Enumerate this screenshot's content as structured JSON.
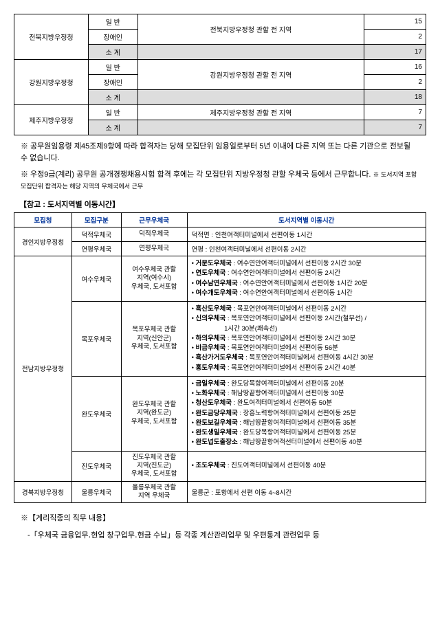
{
  "table1": {
    "rows": [
      {
        "agency": "전북지방우정청",
        "cat": "일 반",
        "region": "전북지방우정청 관할 전 지역",
        "count": "15"
      },
      {
        "cat": "장애인",
        "count": "2"
      },
      {
        "cat": "소 계",
        "count": "17",
        "shaded": true
      },
      {
        "agency": "강원지방우정청",
        "cat": "일 반",
        "region": "강원지방우정청 관할 전 지역",
        "count": "16"
      },
      {
        "cat": "장애인",
        "count": "2"
      },
      {
        "cat": "소 계",
        "count": "18",
        "shaded": true
      },
      {
        "agency": "제주지방우정청",
        "cat": "일 반",
        "region": "제주지방우정청 관할 전 지역",
        "count": "7"
      },
      {
        "cat": "소 계",
        "count": "7",
        "shaded": true
      }
    ]
  },
  "note1": "※ 공무원임용령 제45조제9항에 따라 합격자는 당해 모집단위 임용일로부터 5년 이내에 다른 지역 또는 다른 기관으로 전보될 수 없습니다.",
  "note2a": "※ 우정9급(계리) 공무원 공개경쟁채용시험 합격 후에는 각 모집단위 지방우정청 관할 우체국 등에서 근무합니다.",
  "note2b": "※ 도서지역 포함 모집단위 합격자는 해당 지역의 우체국에서 근무",
  "ref_title": "【참고 : 도서지역별 이동시간】",
  "table2": {
    "headers": [
      "모집청",
      "모집구분",
      "근무우체국",
      "도서지역별 이동시간"
    ],
    "rows": [
      {
        "agency": "경인지방우정청",
        "div": "덕적우체국",
        "office": "덕적우체국",
        "time": "덕적면 : 인천여객터미널에서 선편이동 1시간"
      },
      {
        "div": "연평우체국",
        "office": "연평우체국",
        "time": "연평 : 인천여객터미널에서 선편이동 2시간"
      },
      {
        "agency": "전남지방우정청",
        "div": "여수우체국",
        "office": "여수우체국 관할\n지역(여수시)\n우체국, 도서포함",
        "bullets": [
          "<b>거문도우체국</b> : 여수연안여객터미널에서 선편이동 2시간 30분",
          "<b>연도우체국</b> : 여수연안여객터미널에서 선편이동 2시간",
          "<b>여수남연우체국</b> : 여수연안여객터미널에서 선편이동 1시간 20분",
          "<b>여수개도우체국</b> : 여수연안여객터미널에서 선편이동 1시간"
        ]
      },
      {
        "div": "목포우체국",
        "office": "목포우체국 관할\n지역(신안군)\n우체국, 도서포함",
        "bullets": [
          "<b>흑산도우체국</b> : 목포연안여객터미널에서 선편이동 2시간",
          "<b>신의우체국</b> : 목포연안여객터미널에서 선편이동 2시간(철부선) /<br>　　　　　1시간 30분(쾌속선)",
          "<b>하의우체국</b> : 목포연안여객터미널에서 선편이동 2시간 30분",
          "<b>비금우체국</b> : 목포연안여객터미널에서 선편이동 56분",
          "<b>흑산가거도우체국</b> : 목포연안여객터미널에서 선편이동 4시간 30분",
          "<b>홍도우체국</b> : 목포연안여객터미널에서 선편이동 2시간 40분"
        ]
      },
      {
        "div": "완도우체국",
        "office": "완도우체국 관할\n지역(완도군)\n우체국, 도서포함",
        "bullets": [
          "<b>금일우체국</b> : 완도당목항여객터미널에서 선편이동 20분",
          "<b>노화우체국</b> : 해남땅끝항여객터미널에서 선편이동 30분",
          "<b>청산도우체국</b> : 완도여객터미널에서 선편이동 50분",
          "<b>완도금당우체국</b> : 장흥노력항여객터미널에서 선편이동 25분",
          "<b>완도보길우체국</b> : 해남땅끝항여객터미널에서 선편이동 35분",
          "<b>완도생일우체국</b> : 완도당목항여객터미널에서 선편이동 25분",
          "<b>완도넙도출장소</b> : 해남땅끝항여객선터미널에서 선편이동 40분"
        ]
      },
      {
        "div": "진도우체국",
        "office": "진도우체국 관할\n지역(진도군)\n우체국, 도서포함",
        "bullets": [
          "<b>조도우체국</b> : 진도여객터미널에서 선편이동 40분"
        ]
      },
      {
        "agency": "경북지방우정청",
        "div": "울릉우체국",
        "office": "울릉우체국 관할\n지역 우체국",
        "time": "울릉군 : 포항에서 선편 이동 4~8시간"
      }
    ]
  },
  "duties_title": "※【계리직종의 직무 내용】",
  "duties_text": "-「우체국 금융업무․현업 창구업무․현금 수납」등 각종 계산관리업무 및 우편통계 관련업무 등"
}
